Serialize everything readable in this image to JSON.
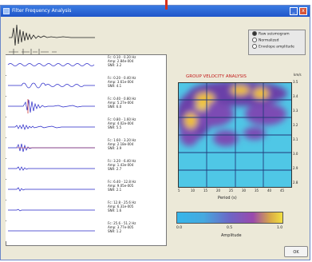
{
  "window": {
    "title": "Filter Frequency Analysis",
    "min_label": "_",
    "close_label": "x"
  },
  "options": [
    {
      "label": "Raw seismogram",
      "selected": true
    },
    {
      "label": "Normalized",
      "selected": false
    },
    {
      "label": "Envelope amplitude",
      "selected": false
    }
  ],
  "traces": [
    {
      "filter": "Fc: 0.10 - 0.20 Hz",
      "amp": "Amp: 2.84e-004",
      "snr": "SNR: 3.2"
    },
    {
      "filter": "Fc: 0.20 - 0.40 Hz",
      "amp": "Amp: 3.61e-004",
      "snr": "SNR: 4.1"
    },
    {
      "filter": "Fc: 0.40 - 0.80 Hz",
      "amp": "Amp: 5.27e-004",
      "snr": "SNR: 6.0"
    },
    {
      "filter": "Fc: 0.80 - 1.60 Hz",
      "amp": "Amp: 4.02e-004",
      "snr": "SNR: 5.5"
    },
    {
      "filter": "Fc: 1.60 - 3.20 Hz",
      "amp": "Amp: 2.18e-004",
      "snr": "SNR: 3.9"
    },
    {
      "filter": "Fc: 3.20 - 6.40 Hz",
      "amp": "Amp: 1.43e-004",
      "snr": "SNR: 2.7"
    },
    {
      "filter": "Fc: 6.40 - 12.8 Hz",
      "amp": "Amp: 9.05e-005",
      "snr": "SNR: 2.1"
    },
    {
      "filter": "Fc: 12.8 - 25.6 Hz",
      "amp": "Amp: 6.31e-005",
      "snr": "SNR: 1.6"
    },
    {
      "filter": "Fc: 25.6 - 51.2 Hz",
      "amp": "Amp: 3.77e-005",
      "snr": "SNR: 1.2"
    }
  ],
  "plot": {
    "title": "GROUP VELOCITY ANALYSIS",
    "y_ticks": [
      "3.5",
      "3.4",
      "3.3",
      "3.2",
      "3.1",
      "3.0",
      "2.9",
      "2.8"
    ],
    "y_unit": "km/s",
    "x_ticks": [
      "5",
      "10",
      "15",
      "20",
      "25",
      "30",
      "35",
      "40",
      "45"
    ],
    "xlabel": "Period (s)"
  },
  "colorbar": {
    "min": "0.0",
    "mid": "0.5",
    "max": "1.0",
    "label": "Amplitude"
  },
  "ok_label": "OK"
}
